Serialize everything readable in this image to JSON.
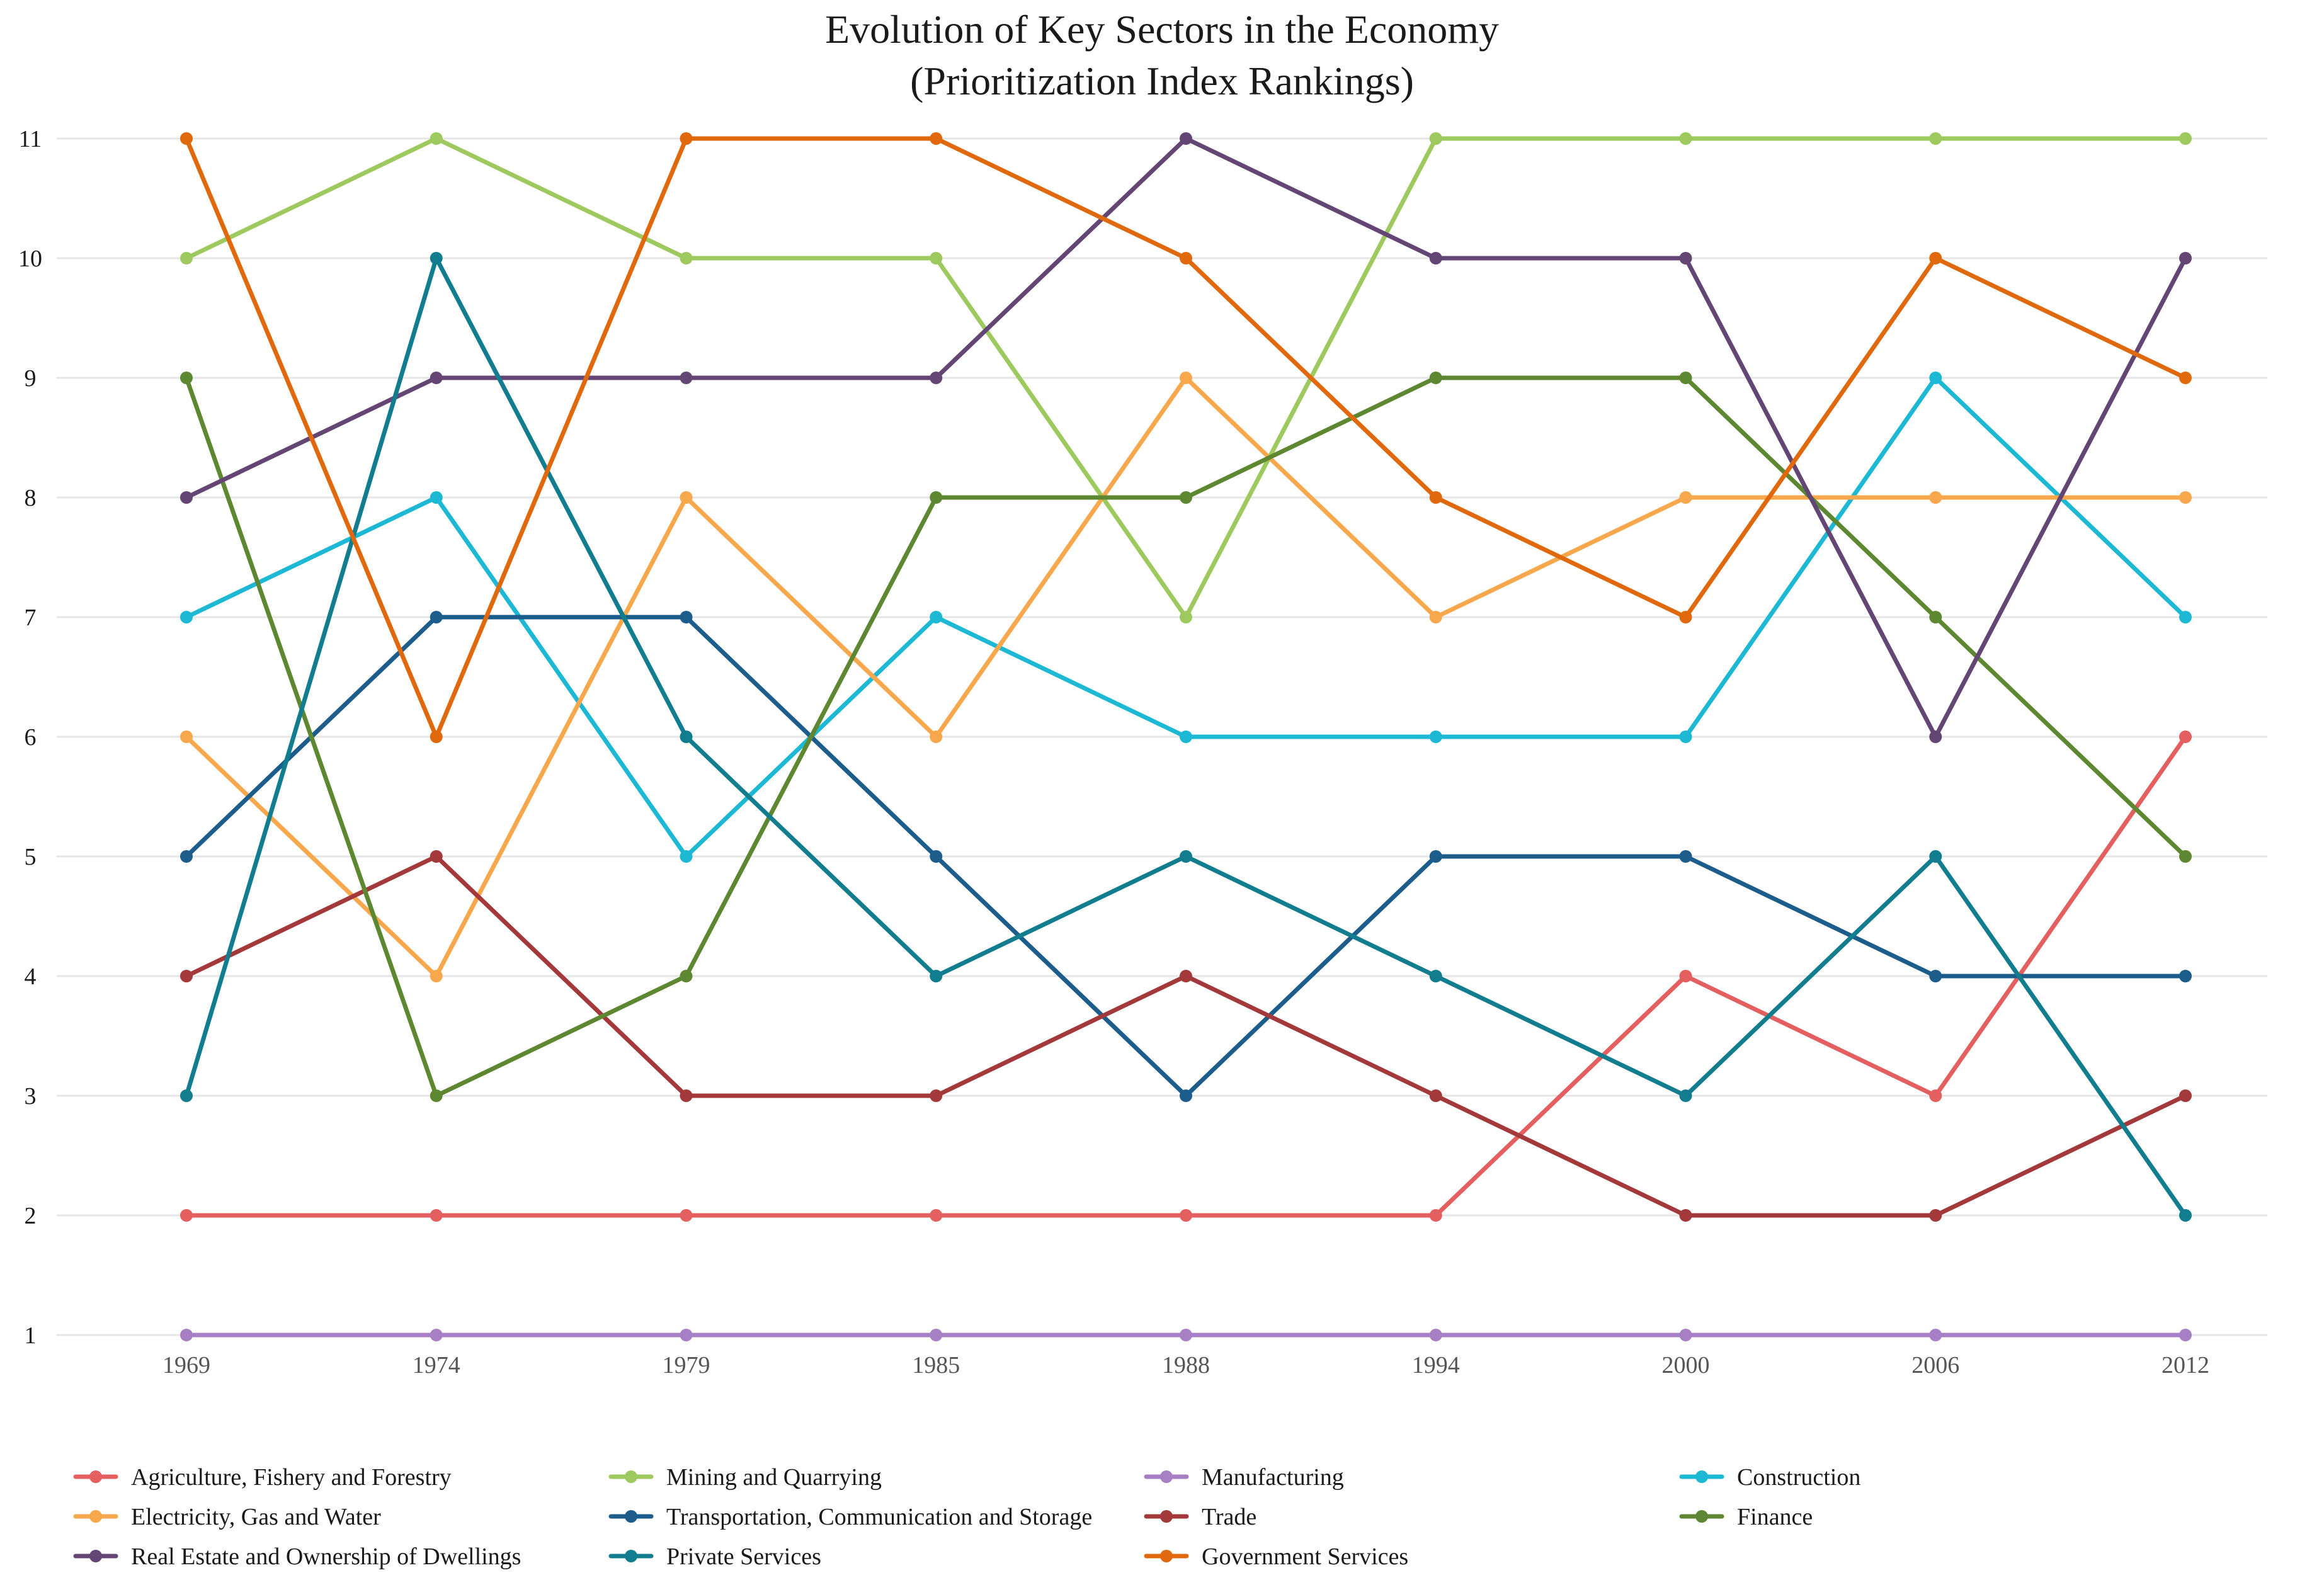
{
  "chart_data": {
    "type": "line",
    "title": "Evolution of Key Sectors in the Economy",
    "subtitle": "(Prioritization Index Rankings)",
    "xlabel": "",
    "ylabel": "",
    "categories": [
      "1969",
      "1974",
      "1979",
      "1985",
      "1988",
      "1994",
      "2000",
      "2006",
      "2012"
    ],
    "ylim": [
      1,
      11
    ],
    "yticks": [
      1,
      2,
      3,
      4,
      5,
      6,
      7,
      8,
      9,
      10,
      11
    ],
    "grid": true,
    "legend_position": "bottom",
    "series": [
      {
        "name": "Agriculture, Fishery and Forestry",
        "color": "#e45f5f",
        "values": [
          2,
          2,
          2,
          2,
          2,
          2,
          4,
          3,
          6
        ]
      },
      {
        "name": "Mining and Quarrying",
        "color": "#9dc95e",
        "values": [
          10,
          11,
          10,
          10,
          7,
          11,
          11,
          11,
          11
        ]
      },
      {
        "name": "Manufacturing",
        "color": "#a77fc4",
        "values": [
          1,
          1,
          1,
          1,
          1,
          1,
          1,
          1,
          1
        ]
      },
      {
        "name": "Construction",
        "color": "#1cb8d4",
        "values": [
          7,
          8,
          5,
          7,
          6,
          6,
          6,
          9,
          7
        ]
      },
      {
        "name": "Electricity, Gas and Water",
        "color": "#f7a74c",
        "values": [
          6,
          4,
          8,
          6,
          9,
          7,
          8,
          8,
          8
        ]
      },
      {
        "name": "Transportation, Communication and Storage",
        "color": "#1c5d8c",
        "values": [
          5,
          7,
          7,
          5,
          3,
          5,
          5,
          4,
          4
        ]
      },
      {
        "name": "Trade",
        "color": "#a3393a",
        "values": [
          4,
          5,
          3,
          3,
          4,
          3,
          2,
          2,
          3
        ]
      },
      {
        "name": "Finance",
        "color": "#5e8731",
        "values": [
          9,
          3,
          4,
          8,
          8,
          9,
          9,
          7,
          5
        ]
      },
      {
        "name": "Real Estate and Ownership of Dwellings",
        "color": "#644675",
        "values": [
          8,
          9,
          9,
          9,
          11,
          10,
          10,
          6,
          10
        ]
      },
      {
        "name": "Private Services",
        "color": "#117d8f",
        "values": [
          3,
          10,
          6,
          4,
          5,
          4,
          3,
          5,
          2
        ]
      },
      {
        "name": "Government Services",
        "color": "#e0690d",
        "values": [
          11,
          6,
          11,
          11,
          10,
          8,
          7,
          10,
          9
        ]
      }
    ]
  }
}
